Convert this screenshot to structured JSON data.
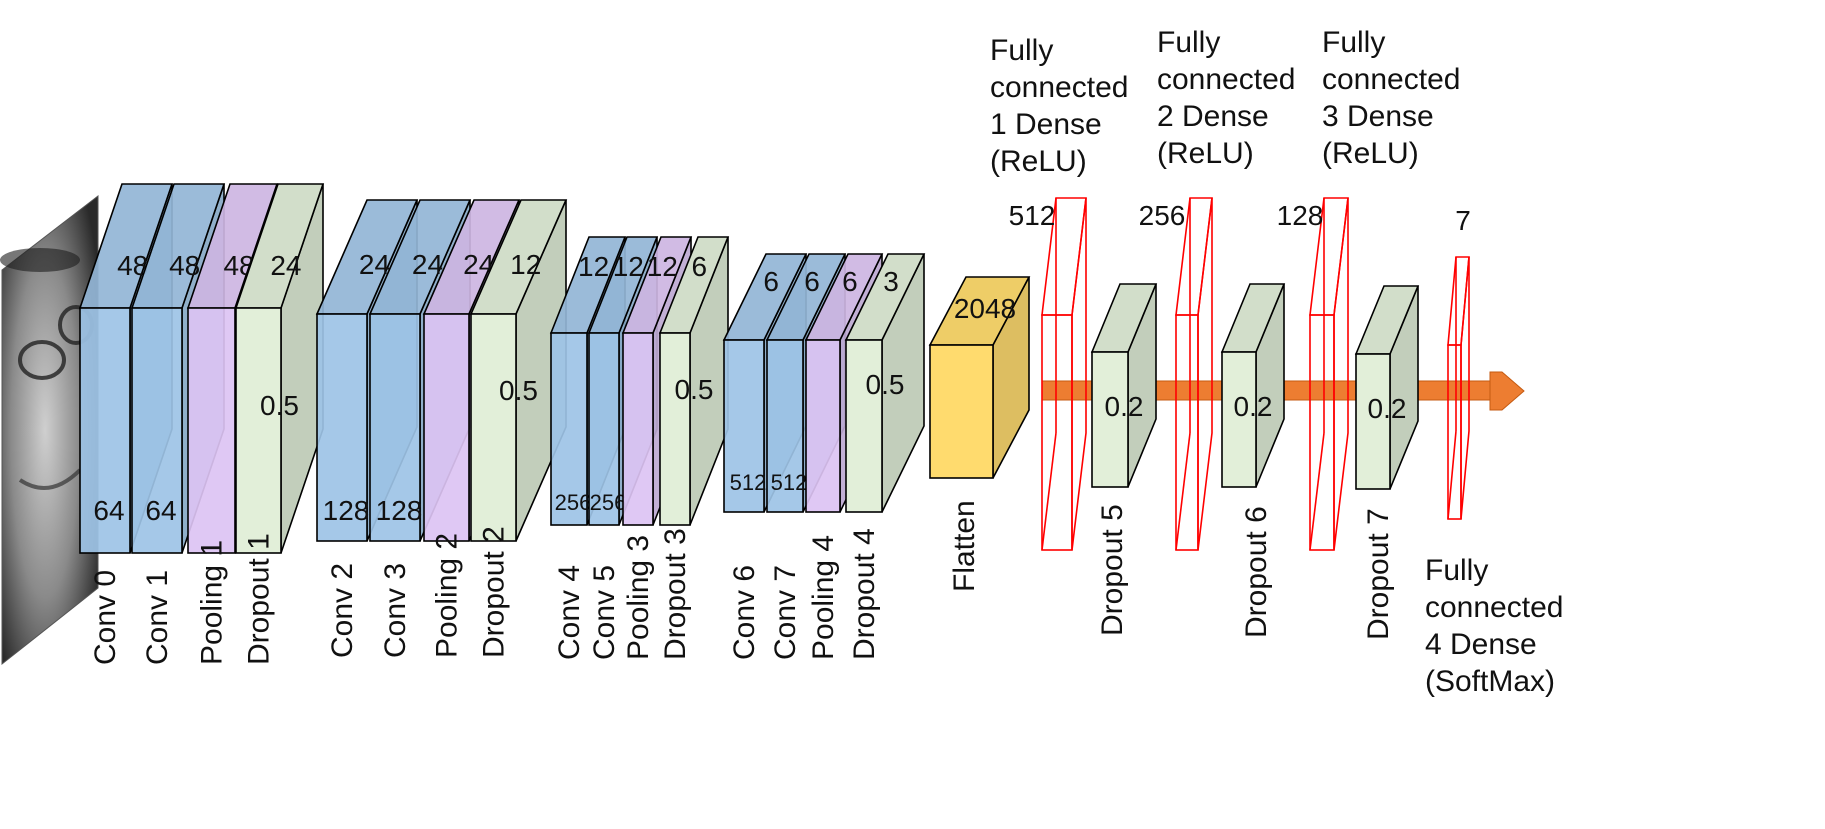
{
  "colors": {
    "conv": "#9dc3e6",
    "pool": "#dcc3f3",
    "dropout": "#e2efd9",
    "flatten": "#ffd966",
    "dense": "#ff0000",
    "arrow": "#ed7d31"
  },
  "input": {
    "icon": "face-photo"
  },
  "blocks": [
    {
      "label": "Conv 0",
      "depth": "48",
      "size": "64",
      "kind": "conv"
    },
    {
      "label": "Conv 1",
      "depth": "48",
      "size": "64",
      "kind": "conv"
    },
    {
      "label": "Pooling 1",
      "depth": "48",
      "kind": "pool"
    },
    {
      "label": "Dropout 1",
      "depth": "24",
      "rate": "0.5",
      "kind": "dropout"
    },
    {
      "label": "Conv 2",
      "depth": "24",
      "size": "128",
      "kind": "conv"
    },
    {
      "label": "Conv 3",
      "depth": "24",
      "size": "128",
      "kind": "conv"
    },
    {
      "label": "Pooling 2",
      "depth": "24",
      "kind": "pool"
    },
    {
      "label": "Dropout 2",
      "depth": "12",
      "rate": "0.5",
      "kind": "dropout"
    },
    {
      "label": "Conv 4",
      "depth": "12",
      "size": "256",
      "kind": "conv"
    },
    {
      "label": "Conv 5",
      "depth": "12",
      "size": "256",
      "kind": "conv"
    },
    {
      "label": "Pooling 3",
      "depth": "12",
      "kind": "pool"
    },
    {
      "label": "Dropout 3",
      "depth": "6",
      "rate": "0.5",
      "kind": "dropout"
    },
    {
      "label": "Conv 6",
      "depth": "6",
      "size": "512",
      "kind": "conv"
    },
    {
      "label": "Conv 7",
      "depth": "6",
      "size": "512",
      "kind": "conv"
    },
    {
      "label": "Pooling 4",
      "depth": "6",
      "kind": "pool"
    },
    {
      "label": "Dropout 4",
      "depth": "3",
      "rate": "0.5",
      "kind": "dropout"
    }
  ],
  "flatten": {
    "label": "Flatten",
    "units": "2048"
  },
  "dense_layers": [
    {
      "units": "512",
      "caption": [
        "Fully",
        "connected",
        "1 Dense",
        "(ReLU)"
      ]
    },
    {
      "units": "256",
      "caption": [
        "Fully",
        "connected",
        "2 Dense",
        "(ReLU)"
      ]
    },
    {
      "units": "128",
      "caption": [
        "Fully",
        "connected",
        "3 Dense",
        "(ReLU)"
      ]
    },
    {
      "units": "7",
      "caption": [
        "Fully",
        "connected",
        "4 Dense",
        "(SoftMax)"
      ]
    }
  ],
  "dense_dropouts": [
    {
      "label": "Dropout 5",
      "rate": "0.2"
    },
    {
      "label": "Dropout 6",
      "rate": "0.2"
    },
    {
      "label": "Dropout 7",
      "rate": "0.2"
    }
  ]
}
